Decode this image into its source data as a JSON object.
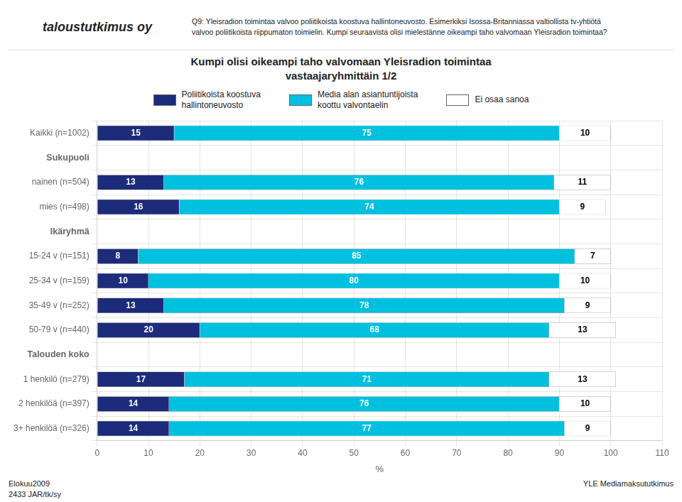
{
  "chart_data": {
    "type": "bar",
    "orientation": "horizontal",
    "stacked": true,
    "data_labels": true,
    "grid": true,
    "legend": "top",
    "title": "Kumpi olisi oikeampi taho valvomaan Yleisradion toimintaa\nvastaajaryhmittäin 1/2",
    "logo_text": "taloustutkimus oy",
    "header_text": "Q9: Yleisradion toimintaa valvoo poliitikoista koostuva hallintoneuvosto. Esimerkiksi Isossa-Britanniassa valtiollista tv-yhtiötä\nvalvoo poliitikoista riippumaton toimielin. Kumpi seuraavista olisi mielestänne oikeampi taho valvomaan Yleisradion toimintaa?",
    "footer_left": "Elokuu2009\n2433 JAR/tk/sy",
    "footer_right": "YLE Mediamaksututkimus",
    "xlabel": "%",
    "xlim": [
      0,
      110
    ],
    "xticks": [
      0,
      10,
      20,
      30,
      40,
      50,
      60,
      70,
      80,
      90,
      100,
      110
    ],
    "categories": [
      "Kaikki (n=1002)",
      "Sukupuoli",
      "nainen (n=504)",
      "mies (n=498)",
      "Ikäryhmä",
      "15-24 v (n=151)",
      "25-34 v (n=159)",
      "35-49 v (n=252)",
      "50-79 v (n=440)",
      "Talouden koko",
      "1 henkilö (n=279)",
      "2 henkilöä (n=397)",
      "3+ henkilöä (n=326)"
    ],
    "series": [
      {
        "name": "Poliitikoista koostuva\nhallintoneuvosto",
        "color": "#1c2b7a",
        "values": [
          15,
          null,
          13,
          16,
          null,
          8,
          10,
          13,
          20,
          null,
          17,
          14,
          14
        ]
      },
      {
        "name": "Media alan asiantuntijoista\nkoottu valvontaelin",
        "color": "#00c0e0",
        "values": [
          75,
          null,
          76,
          74,
          null,
          85,
          80,
          78,
          68,
          null,
          71,
          76,
          77
        ]
      },
      {
        "name": "Ei osaa sanoa",
        "color": "#ffffff",
        "values": [
          10,
          null,
          11,
          9,
          null,
          7,
          10,
          9,
          13,
          null,
          13,
          10,
          9
        ]
      }
    ]
  }
}
